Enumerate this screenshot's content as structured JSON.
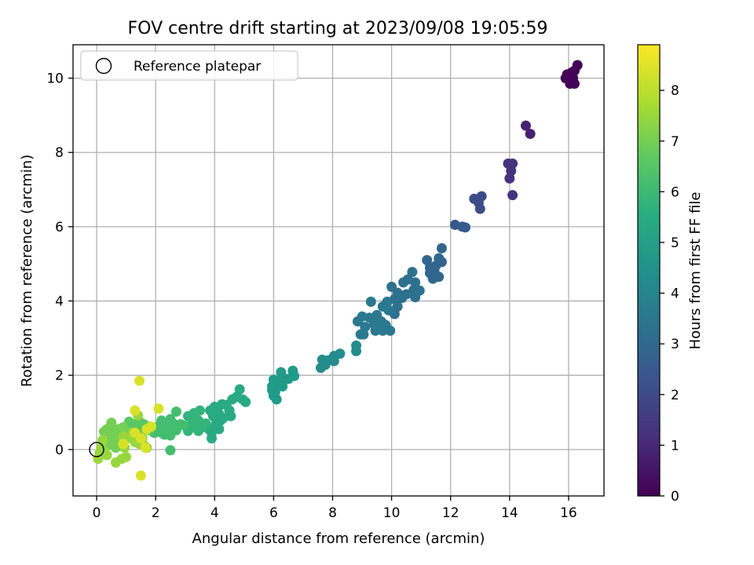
{
  "chart_data": {
    "type": "scatter",
    "title": "FOV centre drift starting at 2023/09/08 19:05:59",
    "xlabel": "Angular distance from reference (arcmin)",
    "ylabel": "Rotation from reference (arcmin)",
    "colorbar_label": "Hours from first FF file",
    "xlim": [
      -0.8,
      17.2
    ],
    "ylim": [
      -1.25,
      10.9
    ],
    "x_ticks": [
      0,
      2,
      4,
      6,
      8,
      10,
      12,
      14,
      16
    ],
    "y_ticks": [
      0,
      2,
      4,
      6,
      8,
      10
    ],
    "colorbar_range": [
      0,
      8.9
    ],
    "colorbar_ticks": [
      0,
      1,
      2,
      3,
      4,
      5,
      6,
      7,
      8
    ],
    "colormap": "viridis",
    "grid": true,
    "legend": {
      "placement": "top-left",
      "entries": [
        {
          "label": "Reference platepar",
          "marker": "open-circle",
          "x": 0,
          "y": 0
        }
      ]
    },
    "points": [
      [
        16.3,
        10.35,
        0.05
      ],
      [
        16.2,
        10.2,
        0.05
      ],
      [
        16.1,
        10.15,
        0.05
      ],
      [
        15.95,
        10.1,
        0.05
      ],
      [
        15.9,
        10.0,
        0.05
      ],
      [
        16.0,
        10.05,
        0.05
      ],
      [
        16.15,
        10.0,
        0.05
      ],
      [
        16.05,
        9.85,
        0.05
      ],
      [
        16.2,
        9.85,
        0.05
      ],
      [
        14.55,
        8.72,
        0.8
      ],
      [
        14.7,
        8.5,
        0.8
      ],
      [
        13.95,
        7.7,
        1.3
      ],
      [
        14.1,
        7.7,
        1.3
      ],
      [
        14.05,
        7.5,
        1.3
      ],
      [
        14.0,
        7.3,
        1.3
      ],
      [
        14.1,
        6.85,
        1.3
      ],
      [
        12.8,
        6.75,
        2.0
      ],
      [
        13.05,
        6.82,
        2.0
      ],
      [
        12.95,
        6.65,
        2.0
      ],
      [
        13.0,
        6.48,
        2.0
      ],
      [
        12.15,
        6.05,
        2.5
      ],
      [
        12.4,
        6.0,
        2.5
      ],
      [
        12.5,
        5.98,
        2.5
      ],
      [
        11.7,
        5.42,
        2.95
      ],
      [
        11.6,
        5.15,
        2.95
      ],
      [
        11.7,
        5.05,
        2.95
      ],
      [
        11.2,
        5.1,
        2.95
      ],
      [
        11.3,
        4.9,
        2.95
      ],
      [
        11.5,
        4.95,
        2.95
      ],
      [
        11.45,
        4.8,
        2.95
      ],
      [
        11.6,
        4.65,
        2.95
      ],
      [
        11.3,
        4.75,
        2.95
      ],
      [
        11.4,
        4.6,
        2.95
      ],
      [
        10.7,
        4.78,
        3.3
      ],
      [
        10.55,
        4.58,
        3.3
      ],
      [
        10.8,
        4.5,
        3.3
      ],
      [
        10.4,
        4.5,
        3.3
      ],
      [
        10.0,
        4.38,
        3.3
      ],
      [
        10.2,
        4.22,
        3.3
      ],
      [
        10.5,
        4.18,
        3.3
      ],
      [
        10.35,
        4.08,
        3.3
      ],
      [
        10.1,
        4.05,
        3.3
      ],
      [
        10.75,
        4.3,
        3.3
      ],
      [
        10.95,
        4.28,
        3.3
      ],
      [
        10.8,
        4.1,
        3.3
      ],
      [
        10.2,
        3.85,
        3.3
      ],
      [
        10.1,
        3.65,
        3.3
      ],
      [
        9.3,
        3.98,
        3.6
      ],
      [
        9.7,
        3.85,
        3.6
      ],
      [
        9.5,
        3.62,
        3.6
      ],
      [
        9.25,
        3.55,
        3.6
      ],
      [
        9.0,
        3.58,
        3.6
      ],
      [
        8.85,
        3.45,
        3.6
      ],
      [
        9.65,
        3.45,
        3.6
      ],
      [
        9.4,
        3.38,
        3.6
      ],
      [
        9.8,
        3.35,
        3.6
      ],
      [
        9.55,
        3.25,
        3.6
      ],
      [
        9.45,
        3.2,
        3.6
      ],
      [
        9.7,
        3.2,
        3.6
      ],
      [
        9.95,
        3.2,
        3.6
      ],
      [
        9.1,
        3.3,
        3.6
      ],
      [
        9.05,
        3.1,
        3.6
      ],
      [
        8.95,
        3.1,
        3.6
      ],
      [
        9.85,
        3.98,
        3.6
      ],
      [
        9.9,
        3.75,
        3.6
      ],
      [
        8.8,
        2.8,
        4.3
      ],
      [
        8.8,
        2.65,
        4.3
      ],
      [
        8.25,
        2.58,
        4.3
      ],
      [
        8.05,
        2.52,
        4.3
      ],
      [
        8.05,
        2.38,
        4.3
      ],
      [
        7.85,
        2.4,
        4.3
      ],
      [
        7.65,
        2.42,
        4.3
      ],
      [
        7.6,
        2.2,
        4.3
      ],
      [
        7.75,
        2.28,
        4.3
      ],
      [
        6.65,
        2.12,
        4.85
      ],
      [
        6.25,
        2.08,
        4.85
      ],
      [
        6.3,
        1.95,
        4.85
      ],
      [
        6.5,
        1.9,
        4.85
      ],
      [
        6.7,
        1.98,
        4.85
      ],
      [
        6.0,
        1.88,
        4.85
      ],
      [
        6.2,
        1.75,
        4.85
      ],
      [
        5.95,
        1.7,
        4.85
      ],
      [
        6.3,
        1.7,
        4.85
      ],
      [
        6.05,
        1.55,
        4.85
      ],
      [
        5.95,
        1.6,
        4.85
      ],
      [
        6.0,
        1.45,
        4.85
      ],
      [
        6.1,
        1.35,
        4.85
      ],
      [
        4.85,
        1.62,
        5.4
      ],
      [
        4.75,
        1.42,
        5.4
      ],
      [
        4.95,
        1.35,
        5.4
      ],
      [
        5.05,
        1.28,
        5.4
      ],
      [
        4.6,
        1.35,
        5.4
      ],
      [
        4.4,
        1.2,
        5.4
      ],
      [
        4.25,
        1.22,
        5.4
      ],
      [
        4.5,
        1.05,
        5.4
      ],
      [
        4.55,
        0.9,
        5.4
      ],
      [
        4.1,
        1.1,
        5.4
      ],
      [
        4.0,
        1.15,
        5.4
      ],
      [
        3.85,
        1.05,
        5.4
      ],
      [
        3.95,
        0.9,
        5.4
      ],
      [
        4.15,
        0.95,
        5.4
      ],
      [
        4.2,
        0.78,
        5.4
      ],
      [
        4.05,
        0.7,
        5.4
      ],
      [
        3.95,
        0.55,
        5.4
      ],
      [
        4.15,
        0.55,
        5.4
      ],
      [
        3.9,
        0.45,
        5.4
      ],
      [
        3.8,
        0.55,
        5.4
      ],
      [
        3.9,
        0.3,
        5.4
      ],
      [
        4.3,
        0.85,
        5.4
      ],
      [
        3.5,
        1.05,
        5.8
      ],
      [
        3.3,
        0.98,
        5.8
      ],
      [
        3.1,
        0.9,
        5.8
      ],
      [
        3.25,
        0.75,
        5.8
      ],
      [
        3.45,
        0.78,
        5.8
      ],
      [
        3.5,
        0.62,
        5.8
      ],
      [
        3.25,
        0.6,
        5.8
      ],
      [
        3.1,
        0.5,
        5.8
      ],
      [
        3.45,
        0.5,
        5.8
      ],
      [
        3.6,
        0.6,
        5.8
      ],
      [
        3.7,
        0.7,
        5.8
      ],
      [
        2.7,
        1.02,
        6.2
      ],
      [
        2.5,
        0.82,
        6.2
      ],
      [
        2.4,
        0.72,
        6.2
      ],
      [
        2.6,
        0.7,
        6.2
      ],
      [
        2.85,
        0.68,
        6.2
      ],
      [
        2.2,
        0.78,
        6.2
      ],
      [
        2.1,
        0.62,
        6.2
      ],
      [
        2.3,
        0.6,
        6.2
      ],
      [
        2.5,
        0.55,
        6.2
      ],
      [
        2.7,
        0.52,
        6.2
      ],
      [
        2.45,
        0.48,
        6.2
      ],
      [
        2.3,
        0.4,
        6.2
      ],
      [
        2.5,
        0.38,
        6.2
      ],
      [
        2.2,
        0.45,
        6.2
      ],
      [
        2.05,
        0.5,
        6.2
      ],
      [
        1.95,
        0.45,
        6.2
      ],
      [
        2.5,
        -0.02,
        6.2
      ],
      [
        2.95,
        0.65,
        6.2
      ],
      [
        1.75,
        0.62,
        6.6
      ],
      [
        1.6,
        0.68,
        6.6
      ],
      [
        1.5,
        0.72,
        6.6
      ],
      [
        1.8,
        0.52,
        6.6
      ],
      [
        1.55,
        0.55,
        6.6
      ],
      [
        1.35,
        0.7,
        6.6
      ],
      [
        1.25,
        0.6,
        6.6
      ],
      [
        1.1,
        0.75,
        6.6
      ],
      [
        1.15,
        0.45,
        6.6
      ],
      [
        1.05,
        0.55,
        6.6
      ],
      [
        0.9,
        0.6,
        7.0
      ],
      [
        0.75,
        0.55,
        7.0
      ],
      [
        0.6,
        0.5,
        7.0
      ],
      [
        0.5,
        0.72,
        7.0
      ],
      [
        0.55,
        0.3,
        7.0
      ],
      [
        0.45,
        0.45,
        7.0
      ],
      [
        0.35,
        0.55,
        7.0
      ],
      [
        0.25,
        0.48,
        7.0
      ],
      [
        0.4,
        0.2,
        7.0
      ],
      [
        0.3,
        0.1,
        7.0
      ],
      [
        0.5,
        0.12,
        7.0
      ],
      [
        0.7,
        0.3,
        7.0
      ],
      [
        0.8,
        0.1,
        7.0
      ],
      [
        0.65,
        0.05,
        7.0
      ],
      [
        0.2,
        0.25,
        7.5
      ],
      [
        0.15,
        0.05,
        7.5
      ],
      [
        0.1,
        -0.1,
        7.5
      ],
      [
        0.05,
        -0.25,
        7.5
      ],
      [
        0.25,
        -0.05,
        7.5
      ],
      [
        0.35,
        -0.15,
        7.5
      ],
      [
        0.65,
        -0.35,
        7.5
      ],
      [
        0.85,
        -0.25,
        7.5
      ],
      [
        1.0,
        -0.2,
        7.5
      ],
      [
        0.95,
        0.05,
        7.5
      ],
      [
        0.9,
        0.35,
        7.5
      ],
      [
        1.05,
        0.3,
        7.5
      ],
      [
        1.3,
        0.2,
        7.5
      ],
      [
        1.45,
        0.15,
        7.5
      ],
      [
        1.6,
        0.12,
        7.5
      ],
      [
        1.55,
        0.32,
        7.5
      ],
      [
        1.2,
        0.45,
        7.5
      ],
      [
        1.4,
        0.92,
        7.5
      ],
      [
        1.7,
        0.05,
        7.5
      ],
      [
        1.3,
        1.05,
        8.4
      ],
      [
        2.1,
        1.1,
        8.4
      ],
      [
        1.45,
        1.85,
        8.4
      ],
      [
        1.5,
        -0.7,
        8.4
      ],
      [
        1.3,
        0.45,
        8.4
      ],
      [
        1.7,
        0.55,
        8.4
      ],
      [
        1.85,
        0.62,
        8.4
      ],
      [
        1.5,
        0.3,
        8.4
      ],
      [
        1.65,
        0.05,
        8.4
      ],
      [
        0.9,
        0.15,
        8.4
      ]
    ]
  }
}
